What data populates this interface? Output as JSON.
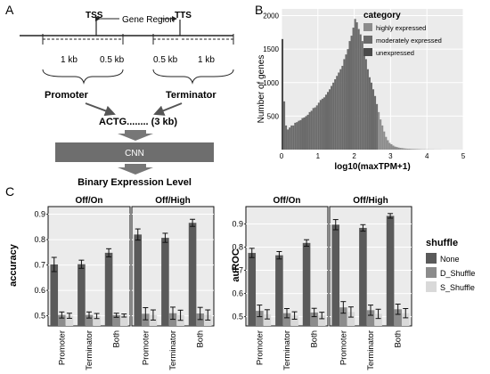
{
  "panel_labels": {
    "a": "A",
    "b": "B",
    "c": "C"
  },
  "schematic": {
    "tss": "TSS",
    "tts": "TTS",
    "gene_region": "Gene Region",
    "seg_1kb_left": "1 kb",
    "seg_05kb_left": "0.5 kb",
    "seg_05kb_right": "0.5 kb",
    "seg_1kb_right": "1 kb",
    "promoter": "Promoter",
    "terminator": "Terminator",
    "sequence": "ACTG........ (3 kb)",
    "cnn": "CNN",
    "output": "Binary Expression Level"
  },
  "colors": {
    "dark": "#5a5a5a",
    "mid": "#8c8c8c",
    "light": "#d9d9d9",
    "panel_bg": "#ebebeb",
    "cnn_box": "#6e6e6e"
  },
  "chart_data": [
    {
      "type": "bar",
      "title": "",
      "xlabel": "log10(maxTPM+1)",
      "ylabel": "Number of genes",
      "xlim": [
        0,
        5
      ],
      "ylim": [
        0,
        2100
      ],
      "xticks": [
        0,
        1,
        2,
        3,
        4,
        5
      ],
      "yticks": [
        500,
        1000,
        1500,
        2000
      ],
      "legend_title": "category",
      "legend": [
        "highly expressed",
        "moderately expressed",
        "unexpressed"
      ],
      "bin_start": 0,
      "bin_width": 0.05,
      "values": [
        1650,
        720,
        360,
        300,
        330,
        360,
        360,
        400,
        410,
        430,
        440,
        470,
        480,
        500,
        520,
        560,
        580,
        620,
        630,
        660,
        700,
        740,
        760,
        780,
        820,
        860,
        900,
        950,
        1000,
        1050,
        1100,
        1150,
        1200,
        1250,
        1350,
        1420,
        1500,
        1620,
        1700,
        1820,
        1950,
        1900,
        1800,
        1720,
        1620,
        1500,
        1350,
        1200,
        1080,
        1000,
        900,
        800,
        680,
        560,
        450,
        360,
        270,
        190,
        140,
        100,
        80,
        60,
        45,
        38,
        30,
        25,
        22,
        18,
        15,
        13,
        12,
        10,
        9,
        8,
        7,
        6,
        5,
        4,
        4,
        3,
        3,
        2,
        2,
        2,
        1,
        1,
        1,
        1,
        0,
        0,
        0,
        0,
        0,
        0,
        0,
        0,
        0,
        0,
        0,
        0
      ],
      "category_thresholds": [
        0.05,
        2.65
      ]
    },
    {
      "type": "bar",
      "ylabel": "accuracy",
      "ylim": [
        0.46,
        0.93
      ],
      "yticks": [
        0.5,
        0.6,
        0.7,
        0.8,
        0.9
      ],
      "legend_title": "shuffle",
      "series": [
        {
          "name": "None"
        },
        {
          "name": "D_Shuffle"
        },
        {
          "name": "S_Shuffle"
        }
      ],
      "facets": [
        {
          "title": "Off/On",
          "categories": [
            "Promoter",
            "Terminator",
            "Both"
          ],
          "values": [
            [
              0.702,
              0.503,
              0.5
            ],
            [
              0.703,
              0.503,
              0.499
            ],
            [
              0.748,
              0.502,
              0.501
            ]
          ],
          "errors": [
            [
              0.028,
              0.012,
              0.01
            ],
            [
              0.016,
              0.012,
              0.01
            ],
            [
              0.016,
              0.008,
              0.006
            ]
          ]
        },
        {
          "title": "Off/High",
          "categories": [
            "Promoter",
            "Terminator",
            "Both"
          ],
          "values": [
            [
              0.82,
              0.508,
              0.503
            ],
            [
              0.807,
              0.51,
              0.502
            ],
            [
              0.866,
              0.509,
              0.503
            ]
          ],
          "errors": [
            [
              0.022,
              0.024,
              0.02
            ],
            [
              0.018,
              0.024,
              0.02
            ],
            [
              0.014,
              0.024,
              0.02
            ]
          ]
        }
      ]
    },
    {
      "type": "bar",
      "ylabel": "auROC",
      "ylim": [
        0.46,
        0.975
      ],
      "yticks": [
        0.5,
        0.6,
        0.7,
        0.8,
        0.9
      ],
      "legend_title": "shuffle",
      "series": [
        {
          "name": "None"
        },
        {
          "name": "D_Shuffle"
        },
        {
          "name": "S_Shuffle"
        }
      ],
      "facets": [
        {
          "title": "Off/On",
          "categories": [
            "Promoter",
            "Terminator",
            "Both"
          ],
          "values": [
            [
              0.775,
              0.525,
              0.51
            ],
            [
              0.765,
              0.515,
              0.505
            ],
            [
              0.818,
              0.518,
              0.505
            ]
          ],
          "errors": [
            [
              0.02,
              0.025,
              0.02
            ],
            [
              0.016,
              0.02,
              0.016
            ],
            [
              0.014,
              0.018,
              0.014
            ]
          ]
        },
        {
          "title": "Off/High",
          "categories": [
            "Promoter",
            "Terminator",
            "Both"
          ],
          "values": [
            [
              0.897,
              0.54,
              0.52
            ],
            [
              0.883,
              0.528,
              0.512
            ],
            [
              0.935,
              0.532,
              0.515
            ]
          ],
          "errors": [
            [
              0.022,
              0.025,
              0.022
            ],
            [
              0.014,
              0.022,
              0.02
            ],
            [
              0.01,
              0.022,
              0.02
            ]
          ]
        }
      ]
    }
  ]
}
